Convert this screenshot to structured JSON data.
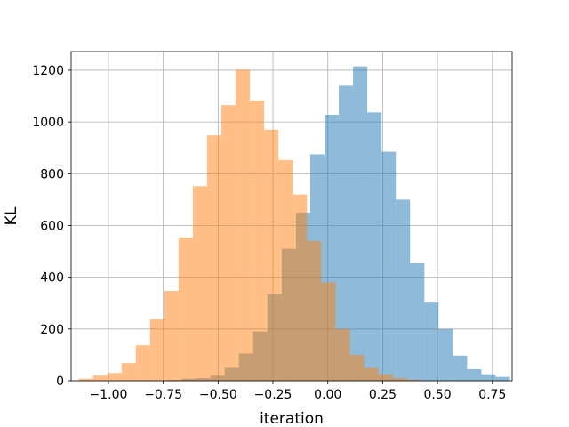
{
  "chart_data": {
    "type": "bar",
    "title": "",
    "xlabel": "iteration",
    "ylabel": "KL",
    "xlim": [
      -1.17,
      0.84
    ],
    "ylim": [
      0,
      1272
    ],
    "grid": true,
    "legend": "none",
    "x_ticks": [
      -1.0,
      -0.75,
      -0.5,
      -0.25,
      0.0,
      0.25,
      0.5,
      0.75
    ],
    "x_tick_labels": [
      "−1.00",
      "−0.75",
      "−0.50",
      "−0.25",
      "0.00",
      "0.25",
      "0.50",
      "0.75"
    ],
    "y_ticks": [
      0,
      200,
      400,
      600,
      800,
      1000,
      1200
    ],
    "y_tick_labels": [
      "0",
      "200",
      "400",
      "600",
      "800",
      "1000",
      "1200"
    ],
    "series": [
      {
        "color": "#1f77b4",
        "opacity": 0.5,
        "bin_edges": [
          -0.73,
          -0.665,
          -0.6,
          -0.535,
          -0.47,
          -0.405,
          -0.34,
          -0.275,
          -0.21,
          -0.145,
          -0.08,
          -0.015,
          0.05,
          0.115,
          0.18,
          0.245,
          0.31,
          0.375,
          0.44,
          0.505,
          0.57,
          0.635,
          0.7,
          0.765,
          0.83
        ],
        "counts": [
          3,
          8,
          10,
          20,
          50,
          105,
          190,
          335,
          510,
          650,
          875,
          1028,
          1140,
          1215,
          1037,
          885,
          700,
          454,
          302,
          200,
          97,
          45,
          25,
          15
        ]
      },
      {
        "color": "#ff7f0e",
        "opacity": 0.5,
        "bin_edges": [
          -1.135,
          -1.07,
          -1.005,
          -0.94,
          -0.875,
          -0.81,
          -0.745,
          -0.68,
          -0.615,
          -0.55,
          -0.485,
          -0.42,
          -0.355,
          -0.29,
          -0.225,
          -0.16,
          -0.095,
          -0.03,
          0.035,
          0.1,
          0.165,
          0.23,
          0.295,
          0.36,
          0.425
        ],
        "counts": [
          8,
          20,
          30,
          68,
          137,
          237,
          347,
          553,
          752,
          948,
          1065,
          1202,
          1083,
          970,
          853,
          720,
          540,
          380,
          200,
          100,
          50,
          25,
          10,
          4
        ]
      }
    ]
  }
}
